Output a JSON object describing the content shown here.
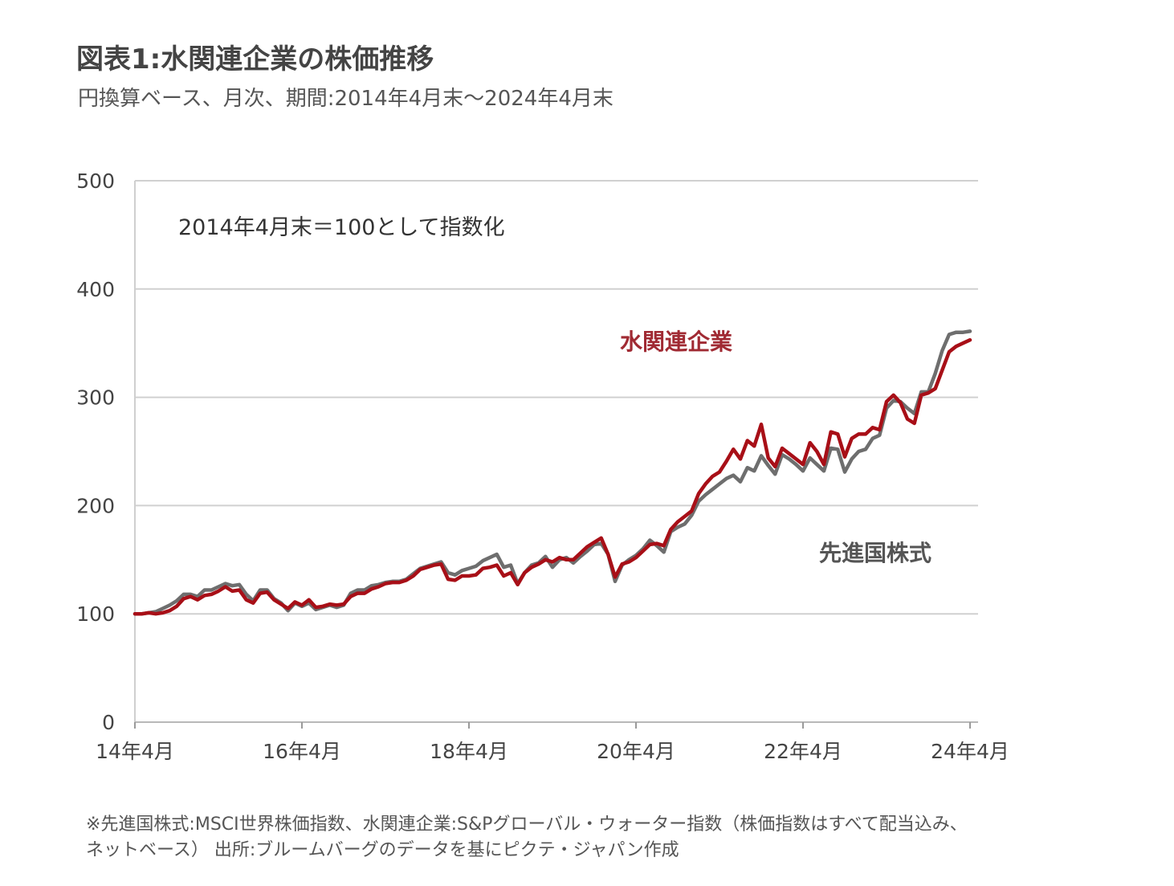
{
  "header": {
    "title": "図表1:水関連企業の株価推移",
    "subtitle": "円換算ベース、月次、期間:2014年4月末～2024年4月末"
  },
  "footnote": {
    "line1": "※先進国株式:MSCI世界株価指数、水関連企業:S&Pグローバル・ウォーター指数（株価指数はすべて配当込み、",
    "line2": "ネットベース） 出所:ブルームバーグのデータを基にピクテ・ジャパン作成"
  },
  "chart_data": {
    "type": "line",
    "annotation": "2014年4月末＝100として指数化",
    "x_tick_labels": [
      "14年4月",
      "16年4月",
      "18年4月",
      "20年4月",
      "22年4月",
      "24年4月"
    ],
    "x_tick_months": [
      0,
      24,
      48,
      72,
      96,
      120
    ],
    "y_ticks": [
      0,
      100,
      200,
      300,
      400,
      500
    ],
    "ylim": [
      0,
      500
    ],
    "xlim": [
      0,
      120
    ],
    "grid": true,
    "series": [
      {
        "name": "先進国株式",
        "color": "#6e6e6e",
        "label_position": "below-right",
        "values": [
          100,
          100,
          101,
          102,
          105,
          108,
          112,
          118,
          118,
          116,
          122,
          122,
          125,
          128,
          126,
          127,
          118,
          112,
          122,
          122,
          114,
          110,
          103,
          110,
          107,
          110,
          104,
          106,
          108,
          106,
          108,
          119,
          122,
          122,
          126,
          127,
          129,
          130,
          130,
          132,
          137,
          142,
          144,
          146,
          148,
          138,
          136,
          140,
          142,
          144,
          149,
          152,
          155,
          143,
          145,
          128,
          138,
          145,
          147,
          153,
          143,
          150,
          152,
          147,
          153,
          158,
          164,
          165,
          155,
          130,
          145,
          150,
          154,
          160,
          168,
          163,
          157,
          176,
          180,
          183,
          191,
          204,
          210,
          215,
          220,
          225,
          228,
          222,
          235,
          232,
          246,
          237,
          229,
          247,
          243,
          238,
          232,
          244,
          238,
          232,
          253,
          252,
          231,
          243,
          250,
          252,
          262,
          265,
          290,
          297,
          296,
          290,
          285,
          305,
          305,
          322,
          343,
          358,
          360,
          360,
          361
        ]
      },
      {
        "name": "水関連企業",
        "color": "#a80f17",
        "label_position": "above",
        "values": [
          100,
          100,
          101,
          100,
          101,
          103,
          107,
          114,
          116,
          113,
          117,
          118,
          121,
          125,
          121,
          122,
          113,
          110,
          119,
          120,
          113,
          109,
          105,
          111,
          108,
          113,
          106,
          107,
          109,
          108,
          109,
          116,
          119,
          119,
          123,
          125,
          128,
          129,
          129,
          131,
          135,
          141,
          143,
          145,
          146,
          132,
          131,
          135,
          135,
          136,
          142,
          143,
          145,
          135,
          138,
          127,
          138,
          143,
          146,
          150,
          148,
          152,
          150,
          150,
          156,
          162,
          166,
          170,
          155,
          134,
          146,
          148,
          152,
          158,
          164,
          165,
          163,
          178,
          185,
          190,
          195,
          211,
          220,
          227,
          231,
          241,
          252,
          243,
          260,
          255,
          275,
          244,
          236,
          253,
          248,
          243,
          238,
          258,
          250,
          238,
          268,
          266,
          245,
          262,
          266,
          266,
          272,
          270,
          296,
          302,
          295,
          280,
          276,
          302,
          304,
          308,
          325,
          342,
          347,
          350,
          353
        ]
      }
    ]
  }
}
